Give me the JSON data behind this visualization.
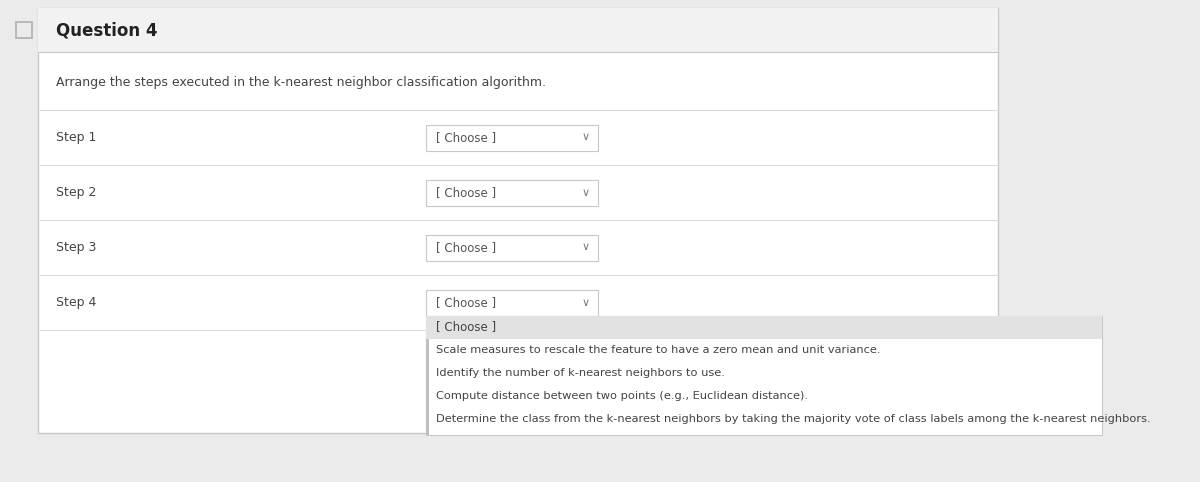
{
  "title": "Question 4",
  "subtitle": "Arrange the steps executed in the k-nearest neighbor classification algorithm.",
  "steps": [
    "Step 1",
    "Step 2",
    "Step 3",
    "Step 4"
  ],
  "dropdown_label": "[ Choose ]",
  "dropdown_options": [
    "[ Choose ]",
    "Scale measures to rescale the feature to have a zero mean and unit variance.",
    "Identify the number of k-nearest neighbors to use.",
    "Compute distance between two points (e.g., Euclidean distance).",
    "Determine the class from the k-nearest neighbors by taking the majority vote of class labels among the k-nearest neighbors."
  ],
  "outer_bg": "#ebebeb",
  "inner_bg": "#ffffff",
  "header_bg": "#f2f2f2",
  "dropdown_bg": "#ffffff",
  "dropdown_open_bg": "#ffffff",
  "dropdown_highlight_bg": "#e2e2e2",
  "border_color": "#c8c8c8",
  "divider_color": "#d8d8d8",
  "text_color": "#444444",
  "title_color": "#222222",
  "dropdown_text_color": "#555555",
  "option_text_color": "#444444",
  "checkbox_color": "#b0b0b0",
  "fig_width": 12.0,
  "fig_height": 4.82
}
